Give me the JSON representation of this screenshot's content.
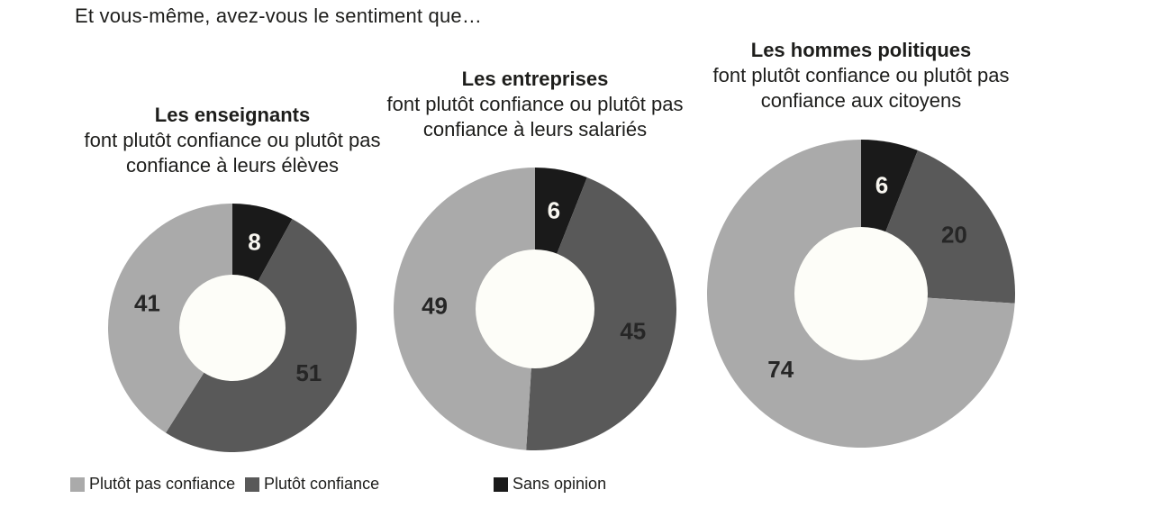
{
  "page": {
    "question": "Et vous-même, avez-vous le sentiment que…",
    "background": "#ffffff",
    "text_color": "#1d1d1b"
  },
  "chart_data": {
    "type": "donut",
    "unit": "percent",
    "start_angle_deg": 0,
    "direction": "clockwise",
    "slice_order": [
      "sans_opinion",
      "plutot_confiance",
      "plutot_pas_confiance"
    ],
    "slice_styles": {
      "plutot_pas_confiance": {
        "label": "Plutôt pas confiance",
        "color": "#aaaaaa",
        "value_label_color": "#262626"
      },
      "plutot_confiance": {
        "label": "Plutôt confiance",
        "color": "#595959",
        "value_label_color": "#262626"
      },
      "sans_opinion": {
        "label": "Sans opinion",
        "color": "#1a1a1a",
        "value_label_color": "#f8f6f0"
      }
    },
    "hole_color": "#fdfdf8",
    "charts": [
      {
        "title": "Les enseignants",
        "subtitle_lines": [
          "font plutôt confiance ou plutôt pas",
          "confiance à leurs élèves"
        ],
        "values": {
          "plutot_pas_confiance": 41,
          "plutot_confiance": 51,
          "sans_opinion": 8
        }
      },
      {
        "title": "Les entreprises",
        "subtitle_lines": [
          "font plutôt confiance ou plutôt pas",
          "confiance à leurs salariés"
        ],
        "values": {
          "plutot_pas_confiance": 49,
          "plutot_confiance": 45,
          "sans_opinion": 6
        }
      },
      {
        "title": "Les hommes politiques",
        "subtitle_lines": [
          "font plutôt confiance ou plutôt pas",
          "confiance aux citoyens"
        ],
        "values": {
          "plutot_pas_confiance": 74,
          "plutot_confiance": 20,
          "sans_opinion": 6
        }
      }
    ],
    "legend": [
      {
        "key": "plutot_pas_confiance",
        "label": "Plutôt pas confiance"
      },
      {
        "key": "plutot_confiance",
        "label": "Plutôt confiance"
      },
      {
        "key": "sans_opinion",
        "label": "Sans opinion"
      }
    ]
  }
}
